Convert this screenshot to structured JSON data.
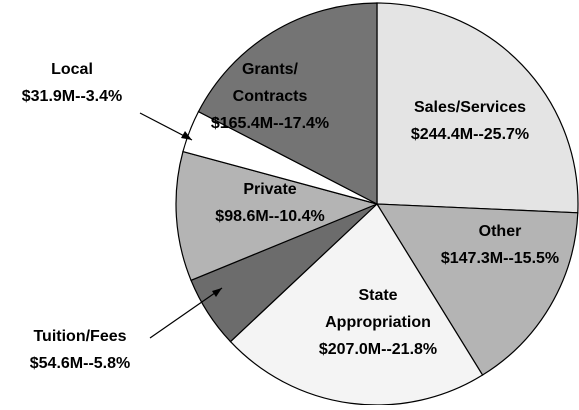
{
  "chart_data": {
    "type": "pie",
    "categories": [
      "Sales/Services",
      "Other",
      "State\nAppropriation",
      "Tuition/Fees",
      "Private",
      "Local",
      "Grants/\nContracts"
    ],
    "values": [
      25.7,
      15.5,
      21.8,
      5.8,
      10.4,
      3.4,
      17.4
    ],
    "value_labels": [
      "$244.4M--25.7%",
      "$147.3M--15.5%",
      "$207.0M--21.8%",
      "$54.6M--5.8%",
      "$98.6M--10.4%",
      "$31.9M--3.4%",
      "$165.4M--17.4%"
    ],
    "colors": [
      "#e4e4e4",
      "#b4b4b4",
      "#f4f4f4",
      "#6c6c6c",
      "#b4b4b4",
      "#ffffff",
      "#747474"
    ]
  }
}
